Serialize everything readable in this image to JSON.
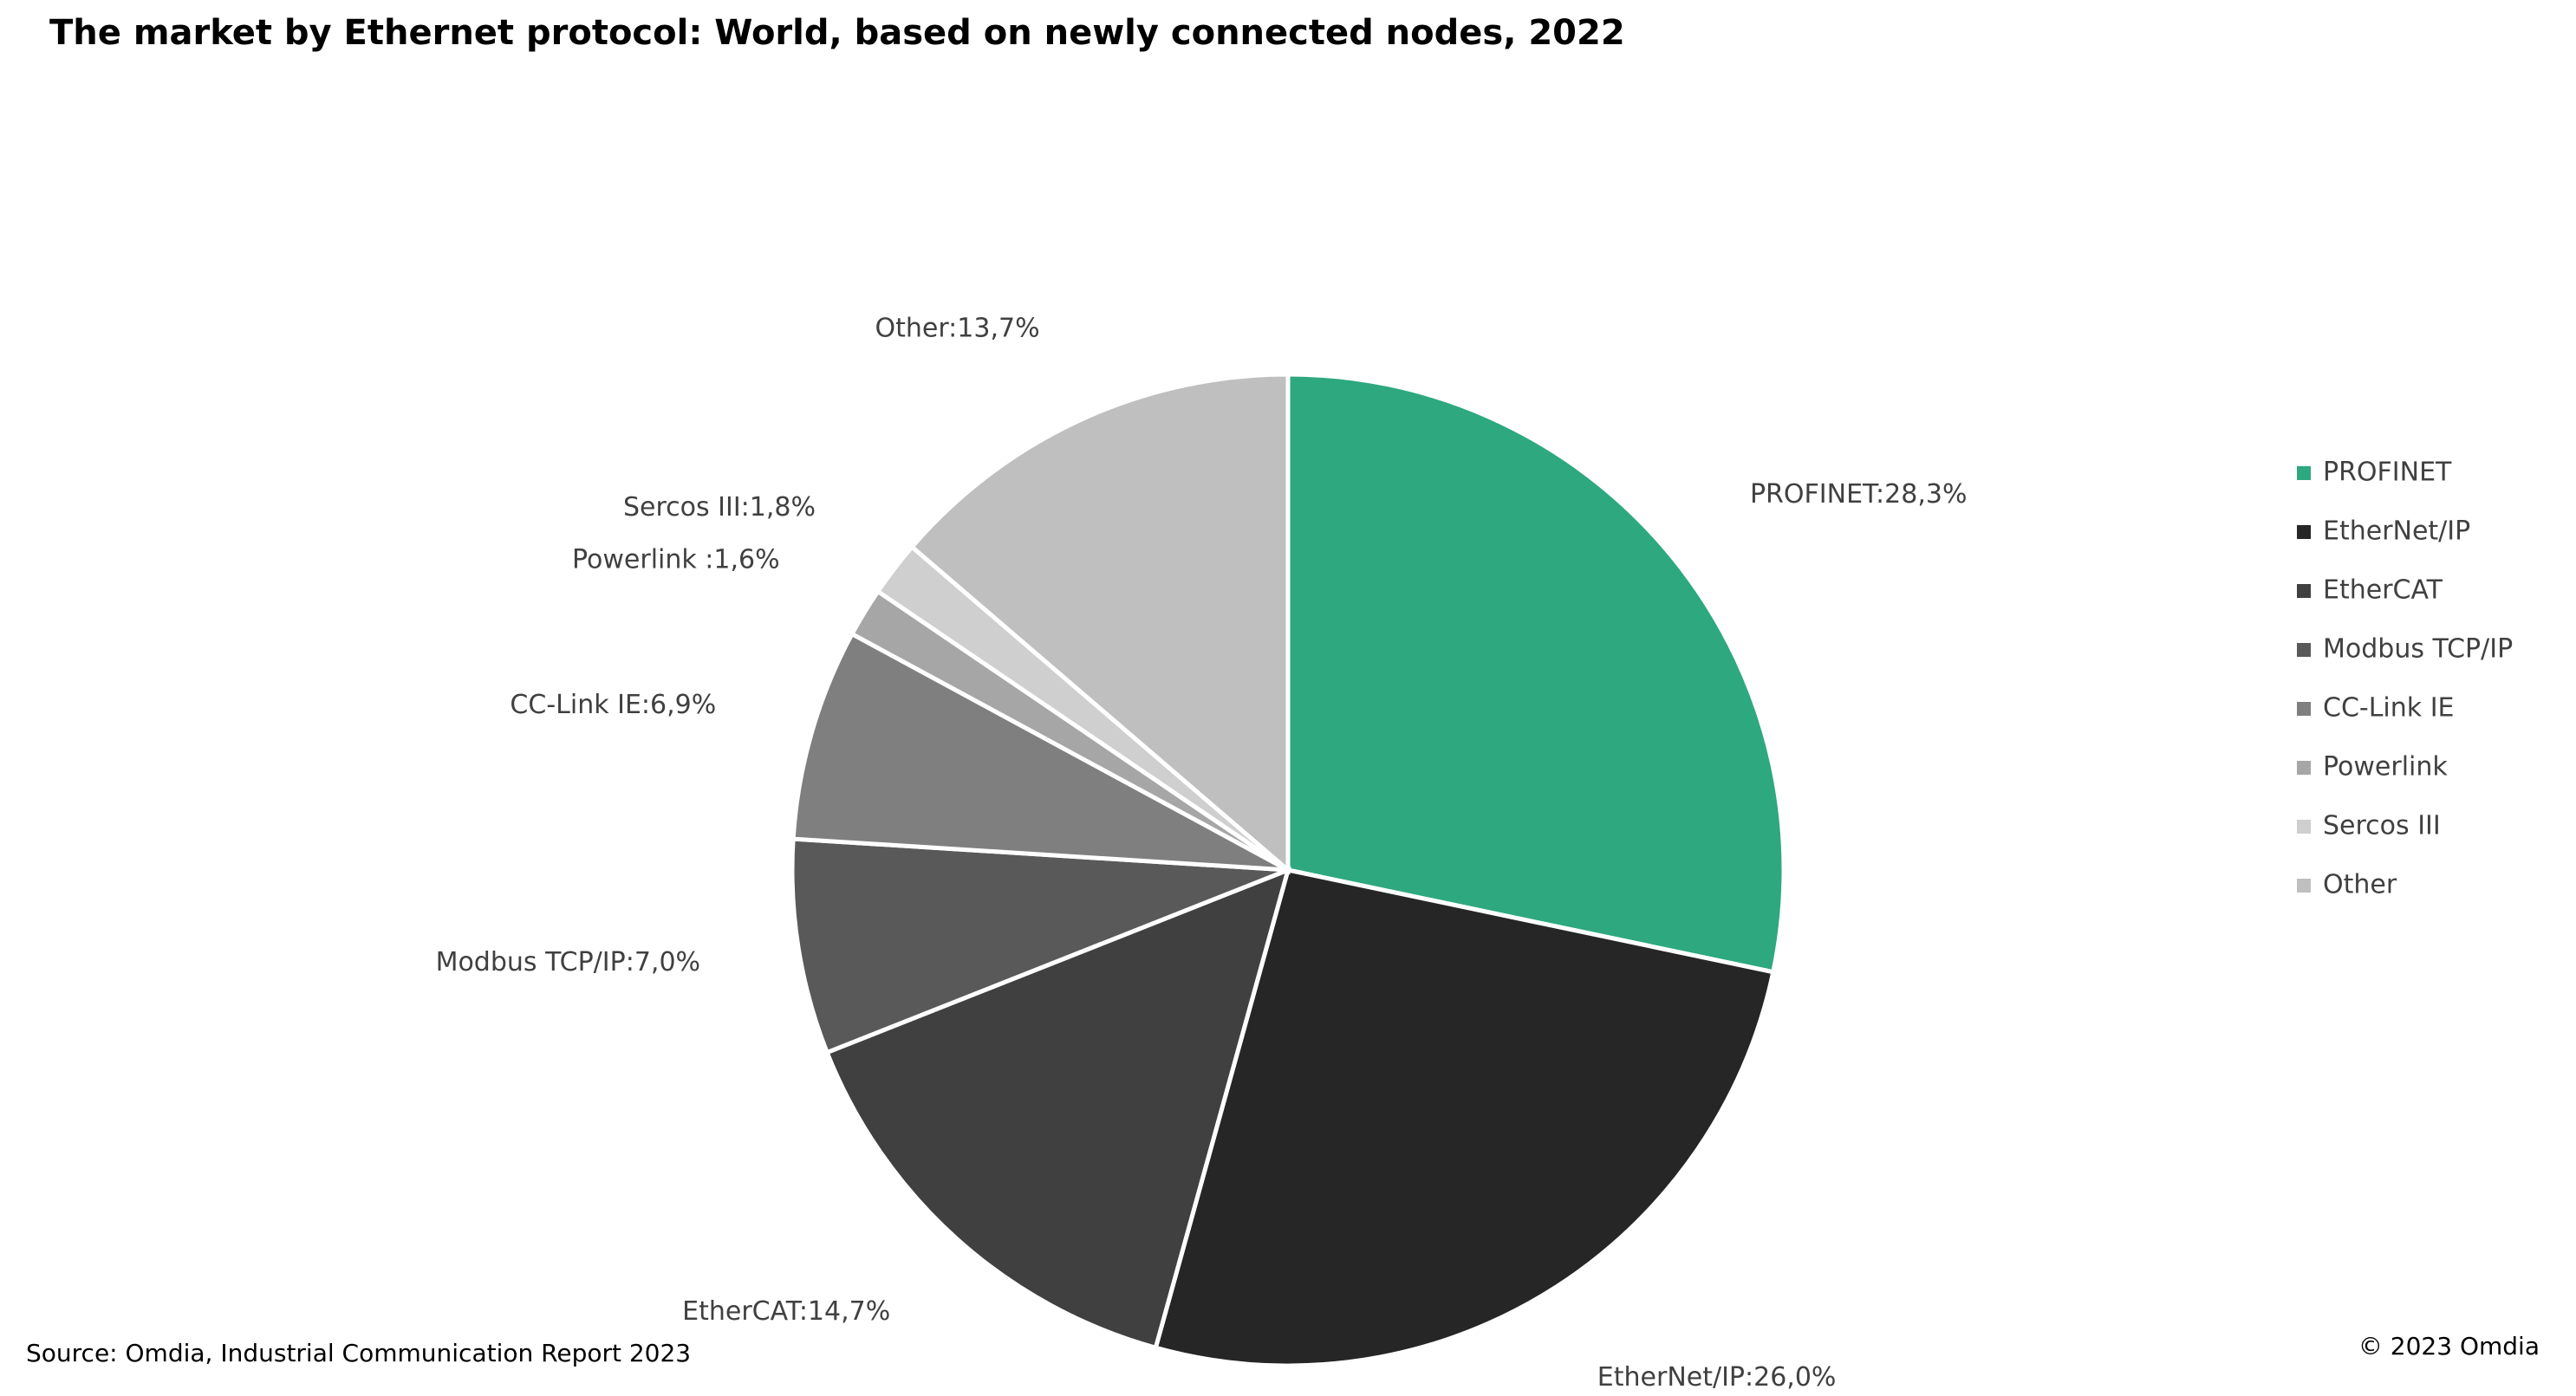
{
  "chart_data": {
    "type": "pie",
    "title": "The market by Ethernet protocol: World, based on newly connected nodes, 2022",
    "categories": [
      "PROFINET",
      "EtherNet/IP",
      "EtherCAT",
      "Modbus TCP/IP",
      "CC-Link IE",
      "Powerlink",
      "Sercos III",
      "Other"
    ],
    "values": [
      28.3,
      26.0,
      14.7,
      7.0,
      6.9,
      1.6,
      1.8,
      13.7
    ],
    "value_labels": [
      "PROFINET:28,3%",
      "EtherNet/IP:26,0%",
      "EtherCAT:14,7%",
      "Modbus TCP/IP:7,0%",
      "CC-Link IE:6,9%",
      "Powerlink :1,6%",
      "Sercos III:1,8%",
      "Other:13,7%"
    ],
    "colors": [
      "#2ea87e",
      "#262626",
      "#404040",
      "#595959",
      "#7f7f7f",
      "#a6a6a6",
      "#cfcfcf",
      "#bfbfbf"
    ],
    "legend": "right",
    "source": "Source: Omdia, Industrial Communication Report 2023",
    "copyright": "© 2023 Omdia"
  }
}
